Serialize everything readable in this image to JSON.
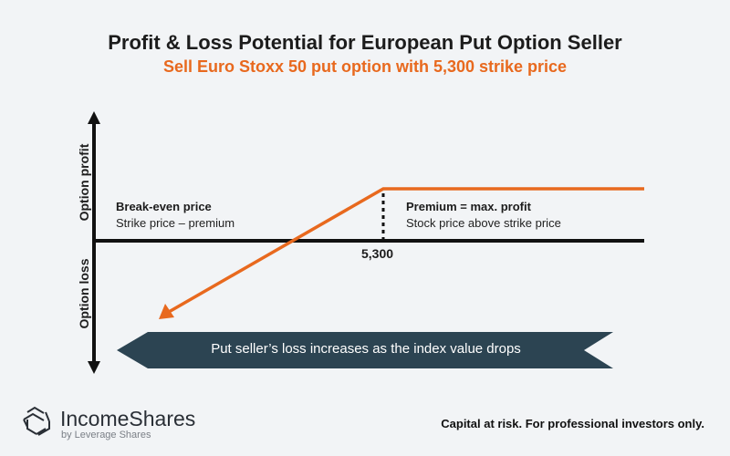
{
  "title": "Profit & Loss Potential for European Put Option Seller",
  "subtitle": "Sell Euro Stoxx 50 put option with 5,300 strike price",
  "axes": {
    "y_top_label": "Option profit",
    "y_bottom_label": "Option loss",
    "strike_label": "5,300"
  },
  "annotations": {
    "break_even_title": "Break-even price",
    "break_even_text": "Strike price –  premium",
    "premium_title": "Premium = max. profit",
    "premium_text": "Stock price above strike price"
  },
  "banner": "Put seller’s loss increases as the index value drops",
  "brand": {
    "name": "IncomeShares",
    "tagline": "by Leverage Shares"
  },
  "disclaimer": "Capital at risk. For professional investors only.",
  "colors": {
    "accent": "#e8691e",
    "banner": "#2c4452",
    "axis": "#111111"
  }
}
